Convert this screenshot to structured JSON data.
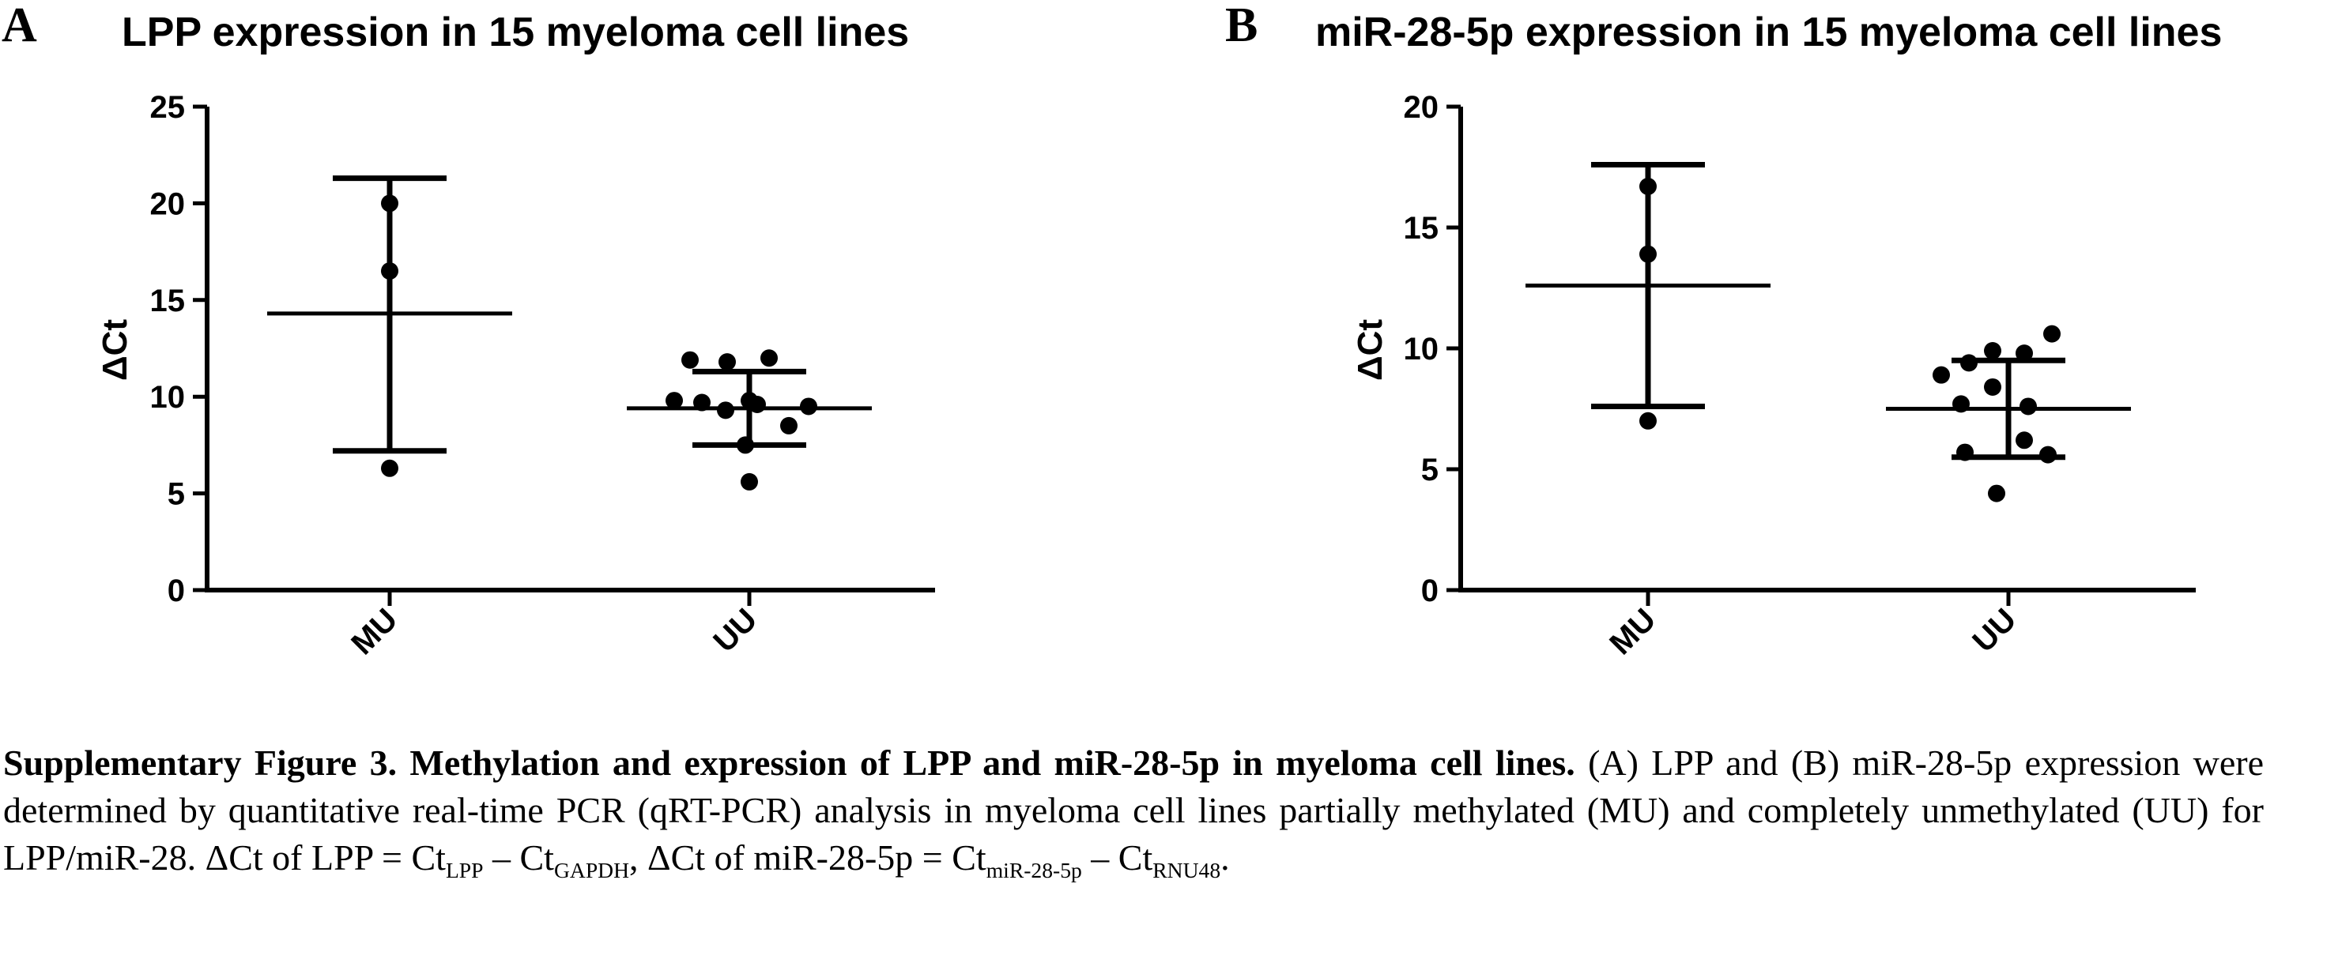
{
  "chart_data": [
    {
      "type": "scatter",
      "panel": "A",
      "title": "LPP expression in 15 myeloma cell lines",
      "ylabel": "ΔCt",
      "xlabel": "",
      "ylim": [
        0,
        25
      ],
      "yticks": [
        0,
        5,
        10,
        15,
        20,
        25
      ],
      "categories": [
        "MU",
        "UU"
      ],
      "groups": [
        {
          "category": "MU",
          "mean": 14.3,
          "sd_low": 7.2,
          "sd_high": 21.3,
          "points": [
            20.0,
            16.5,
            6.3
          ]
        },
        {
          "category": "UU",
          "mean": 9.4,
          "sd_low": 7.5,
          "sd_high": 11.3,
          "points": [
            11.9,
            11.8,
            12.0,
            9.8,
            9.7,
            9.8,
            9.6,
            9.5,
            9.3,
            8.5,
            7.5,
            5.6
          ]
        }
      ],
      "grid": false,
      "legend": "none"
    },
    {
      "type": "scatter",
      "panel": "B",
      "title": "miR-28-5p expression in 15 myeloma cell lines",
      "ylabel": "ΔCt",
      "xlabel": "",
      "ylim": [
        0,
        20
      ],
      "yticks": [
        0,
        5,
        10,
        15,
        20
      ],
      "categories": [
        "MU",
        "UU"
      ],
      "groups": [
        {
          "category": "MU",
          "mean": 12.6,
          "sd_low": 7.6,
          "sd_high": 17.6,
          "points": [
            16.7,
            13.9,
            7.0
          ]
        },
        {
          "category": "UU",
          "mean": 7.5,
          "sd_low": 5.5,
          "sd_high": 9.5,
          "points": [
            10.6,
            9.9,
            9.8,
            9.4,
            8.9,
            8.4,
            7.7,
            7.6,
            6.2,
            5.7,
            5.6,
            4.0
          ]
        }
      ],
      "grid": false,
      "legend": "none"
    }
  ],
  "caption": {
    "bold_part": "Supplementary Figure 3. Methylation and expression of LPP and miR-28-5p in myeloma cell lines.",
    "line1_rest": " (A) LPP and (B) miR-28-5p expression were determined by quantitative real-time PCR (qRT-PCR) analysis in myeloma cell lines partially methylated (MU) and completely unmethylated (UU) for  LPP/miR-28. ",
    "dct_lpp_lhs": "ΔCt of LPP = Ct",
    "dct_lpp_sub1": "LPP",
    "dct_lpp_mid": " – Ct",
    "dct_lpp_sub2": "GAPDH",
    "dct_mir_lhs": ", ΔCt of miR-28-5p = Ct",
    "dct_mir_sub1": "miR-28-5p",
    "dct_mir_mid": " – Ct",
    "dct_mir_sub2": "RNU48",
    "end": "."
  }
}
